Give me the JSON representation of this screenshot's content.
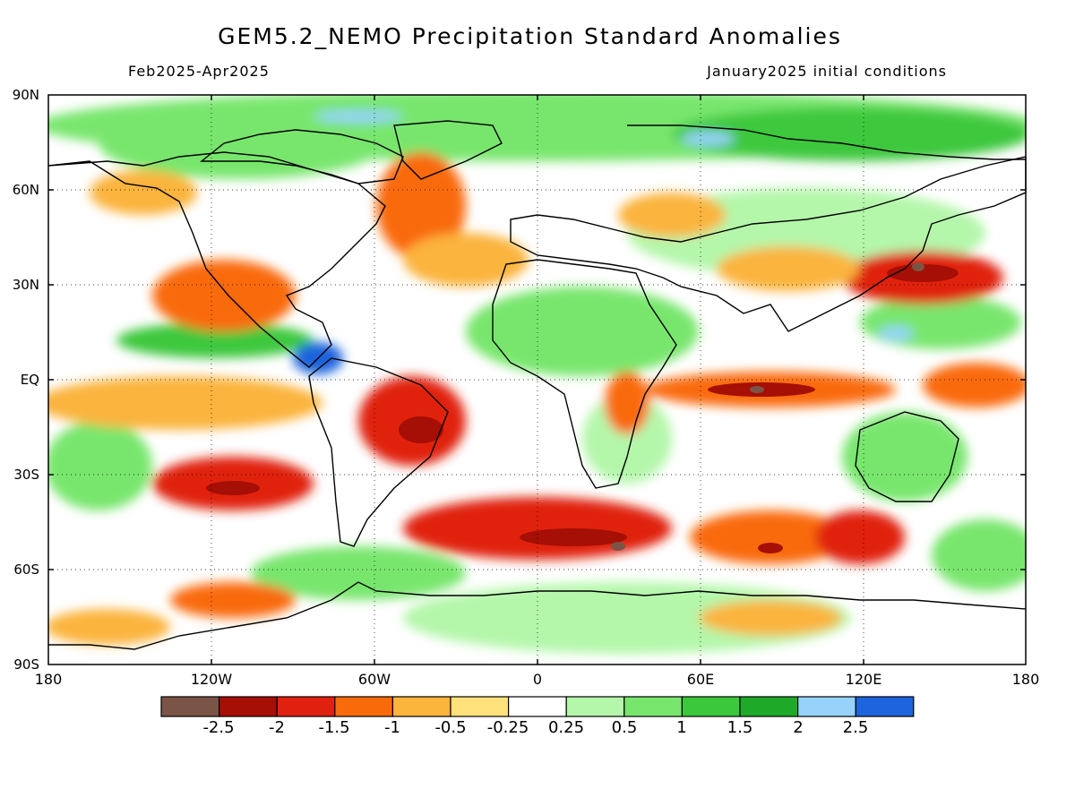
{
  "title": "GEM5.2_NEMO Precipitation Standard Anomalies",
  "period": "Feb2025-Apr2025",
  "initial_conditions": "January2025 initial conditions",
  "lat_labels": [
    "90N",
    "60N",
    "30N",
    "EQ",
    "30S",
    "60S",
    "90S"
  ],
  "lon_labels": [
    "180",
    "120W",
    "60W",
    "0",
    "60E",
    "120E",
    "180"
  ],
  "legend": {
    "colors": [
      "#7a5446",
      "#a50f05",
      "#e0210f",
      "#f96b0a",
      "#fbb43c",
      "#fee17a",
      "#ffffff",
      "#b4f7aa",
      "#78e66d",
      "#3cc83c",
      "#1eaa28",
      "#96d2fa",
      "#1e64dc"
    ],
    "labels": [
      "-2.5",
      "-2",
      "-1.5",
      "-1",
      "-0.5",
      "-0.25",
      "0.25",
      "0.5",
      "1",
      "1.5",
      "2",
      "2.5"
    ]
  }
}
